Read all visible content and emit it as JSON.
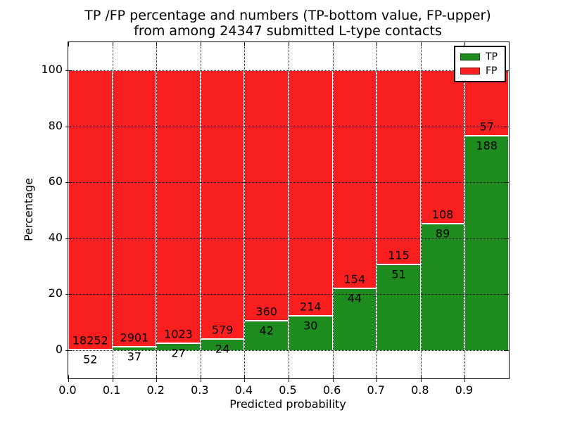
{
  "title": {
    "line1": "TP /FP percentage and numbers (TP-bottom value, FP-upper)",
    "line2": "from among 24347 submitted L-type contacts"
  },
  "chart_data": {
    "type": "bar",
    "stacked": true,
    "title": "TP /FP percentage and numbers (TP-bottom value, FP-upper) from among 24347 submitted L-type contacts",
    "xlabel": "Predicted probability",
    "ylabel": "Percentage",
    "total_contacts": 24347,
    "bins": [
      "0.0-0.1",
      "0.1-0.2",
      "0.2-0.3",
      "0.3-0.4",
      "0.4-0.5",
      "0.5-0.6",
      "0.6-0.7",
      "0.7-0.8",
      "0.8-0.9",
      "0.9-1.0"
    ],
    "series": [
      {
        "name": "TP",
        "color": "#1e8b1e",
        "counts": [
          52,
          37,
          27,
          24,
          42,
          30,
          44,
          51,
          89,
          188
        ]
      },
      {
        "name": "FP",
        "color": "#fa1f1f",
        "counts": [
          18252,
          2901,
          1023,
          579,
          360,
          214,
          154,
          115,
          108,
          57
        ]
      }
    ],
    "tp_percent_heights": [
      0.28,
      1.26,
      2.57,
      3.98,
      10.45,
      12.3,
      22.22,
      30.72,
      45.18,
      76.73
    ],
    "x_tick_labels": [
      "0.0",
      "0.1",
      "0.2",
      "0.3",
      "0.4",
      "0.5",
      "0.6",
      "0.7",
      "0.8",
      "0.9"
    ],
    "y_ticks": [
      0,
      20,
      40,
      60,
      80,
      100
    ],
    "xlim": [
      0.0,
      1.0
    ],
    "ylim": [
      -10,
      110
    ],
    "grid": "dotted",
    "legend_position": "upper right",
    "colors": {
      "tp": "#1e8b1e",
      "fp": "#fa1f1f",
      "text": "#000000",
      "background": "#ffffff"
    }
  }
}
